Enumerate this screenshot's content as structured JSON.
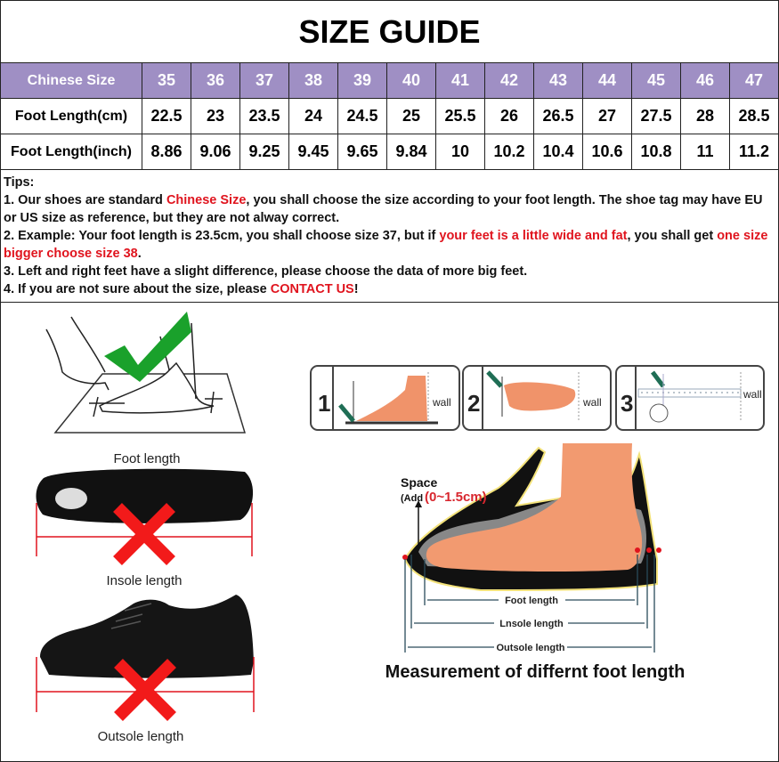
{
  "title": "SIZE GUIDE",
  "table": {
    "header_label": "Chinese Size",
    "sizes": [
      "35",
      "36",
      "37",
      "38",
      "39",
      "40",
      "41",
      "42",
      "43",
      "44",
      "45",
      "46",
      "47"
    ],
    "rows": [
      {
        "label": "Foot Length(cm)",
        "values": [
          "22.5",
          "23",
          "23.5",
          "24",
          "24.5",
          "25",
          "25.5",
          "26",
          "26.5",
          "27",
          "27.5",
          "28",
          "28.5"
        ]
      },
      {
        "label": "Foot Length(inch)",
        "values": [
          "8.86",
          "9.06",
          "9.25",
          "9.45",
          "9.65",
          "9.84",
          "10",
          "10.2",
          "10.4",
          "10.6",
          "10.8",
          "11",
          "11.2"
        ]
      }
    ],
    "header_color": "#9f8fc4"
  },
  "tips": {
    "heading": "Tips:",
    "t1a": "1. Our shoes are standard ",
    "t1b": "Chinese Size",
    "t1c": ", you shall choose the size according to your foot length. The shoe tag may have EU or US size as reference, but they are not alway correct.",
    "t2a": "2. Example: Your foot length is 23.5cm, you shall choose size 37, but if ",
    "t2b": "your feet is a little wide and fat",
    "t2c": ", you shall get ",
    "t2d": "one size bigger choose size 38",
    "t2e": ".",
    "t3": "3. Left and right feet have a slight difference, please choose the data of more big feet.",
    "t4a": "4. If you are not sure about the size, please ",
    "t4b": "CONTACT US",
    "t4c": "!",
    "highlight_color": "#e0141e"
  },
  "left_panel": {
    "foot_caption": "Foot length",
    "insole_caption": "Insole length",
    "outsole_caption": "Outsole length",
    "correct_icon": "green-check-icon",
    "wrong_icon": "red-x-icon"
  },
  "right_panel": {
    "steps": [
      {
        "number": "1",
        "wall": "wall"
      },
      {
        "number": "2",
        "wall": "wall"
      },
      {
        "number": "3",
        "wall": "wall"
      }
    ],
    "space_label": "Space",
    "add_label": "(Add",
    "add_value": "(0~1.5cm)",
    "foot_length": "Foot length",
    "insole_length": "Lnsole length",
    "outsole_length": "Outsole length",
    "caption": "Measurement of differnt foot length"
  }
}
